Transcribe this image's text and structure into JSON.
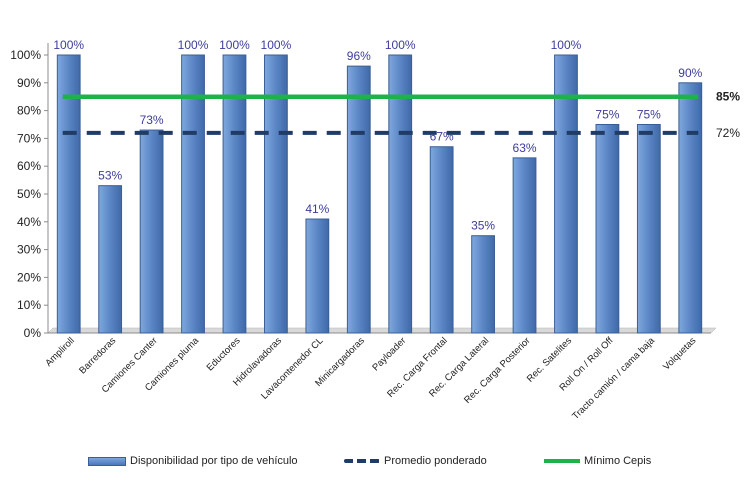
{
  "chart_data": {
    "type": "bar",
    "categories": [
      "Ampliroll",
      "Barredoras",
      "Camiones Canter",
      "Camiones pluma",
      "Eductores",
      "Hidrolavadoras",
      "Lavacontenedor CL",
      "Minicargadoras",
      "Payloader",
      "Rec. Carga Frontal",
      "Rec. Carga Lateral",
      "Rec. Carga Posterior",
      "Rec. Satelites",
      "Roll On / Roll Off",
      "Tracto camión / cama baja",
      "Volquetas"
    ],
    "series": [
      {
        "name": "Disponibilidad por tipo de vehículo",
        "values": [
          100,
          53,
          73,
          100,
          100,
          100,
          41,
          96,
          100,
          67,
          35,
          63,
          100,
          75,
          75,
          90
        ],
        "labels": [
          "100%",
          "53%",
          "73%",
          "100%",
          "100%",
          "100%",
          "41%",
          "96%",
          "100%",
          "67%",
          "35%",
          "63%",
          "100%",
          "75%",
          "75%",
          "90%"
        ]
      }
    ],
    "reference_lines": [
      {
        "name": "Promedio ponderado",
        "value": 72,
        "label": "72%",
        "style": "dashed",
        "color": "#1f3b66"
      },
      {
        "name": "Mínimo Cepis",
        "value": 85,
        "label": "85%",
        "style": "solid",
        "color": "#1cb34a"
      }
    ],
    "ylim": [
      0,
      100
    ],
    "y_ticks": [
      "0%",
      "10%",
      "20%",
      "30%",
      "40%",
      "50%",
      "60%",
      "70%",
      "80%",
      "90%",
      "100%"
    ],
    "grid": false,
    "legend_position": "bottom",
    "colors": {
      "bar": "#5b86c5",
      "bar_border": "#3a5f97",
      "data_label": "#3d3d9b",
      "average": "#1f3b66",
      "minimum": "#1cb34a"
    }
  }
}
